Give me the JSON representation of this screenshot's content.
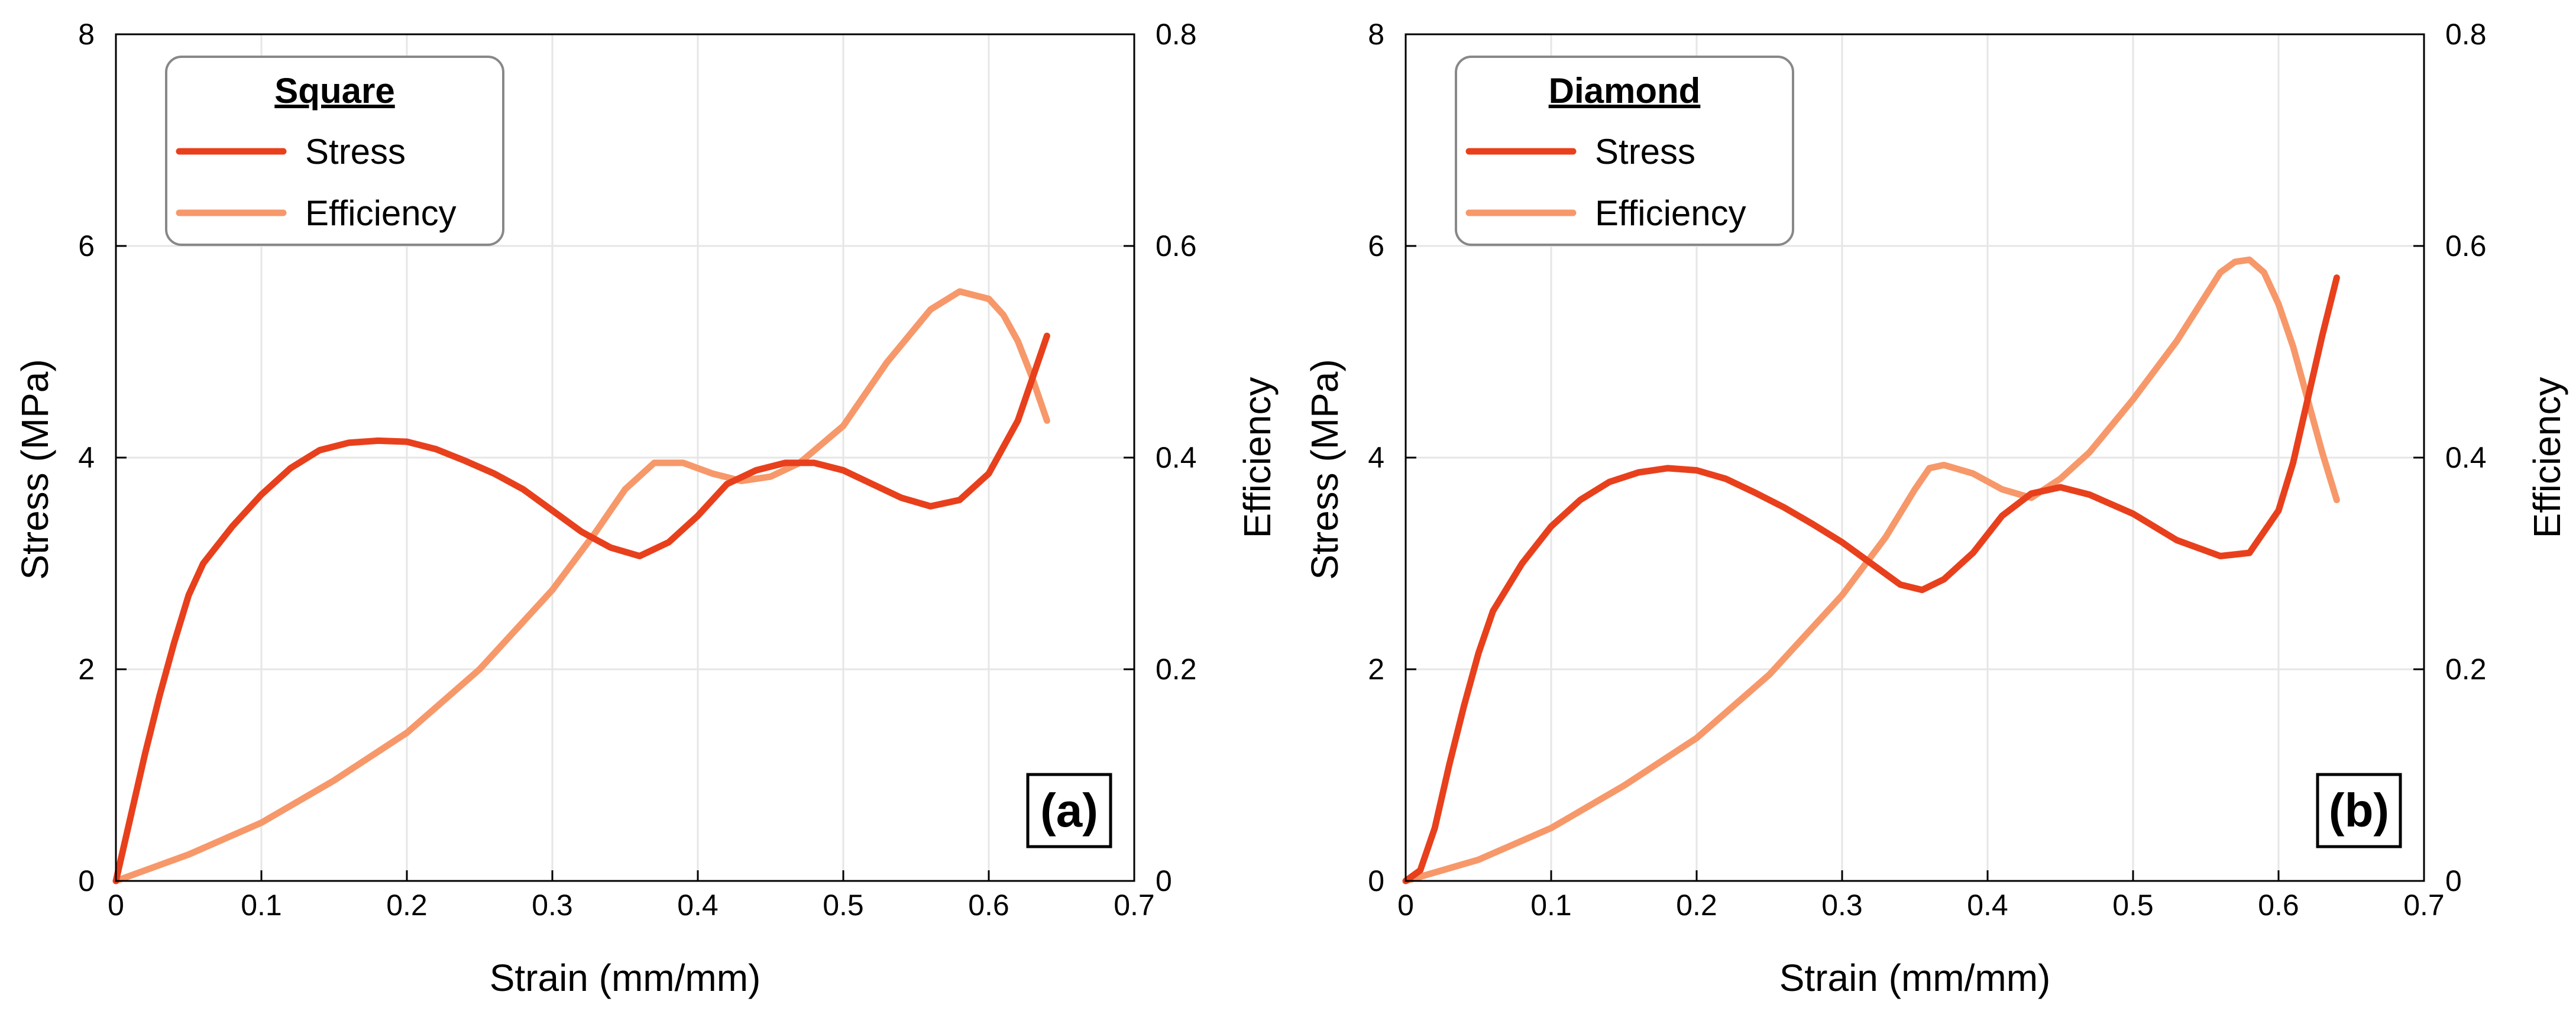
{
  "colors": {
    "stress": "#e8401c",
    "efficiency": "#f7986a"
  },
  "chart_data": [
    {
      "type": "line",
      "panel_label": "(a)",
      "legend_title": "Square",
      "legend_position": "top-left",
      "xlabel": "Strain (mm/mm)",
      "ylabel": "Stress (MPa)",
      "y2label": "Efficiency",
      "xlim": [
        0,
        0.7
      ],
      "ylim": [
        0,
        8
      ],
      "y2lim": [
        0,
        0.8
      ],
      "xticks": [
        "0",
        "0.1",
        "0.2",
        "0.3",
        "0.4",
        "0.5",
        "0.6",
        "0.7"
      ],
      "yticks": [
        "0",
        "2",
        "4",
        "6",
        "8"
      ],
      "y2ticks": [
        "0",
        "0.2",
        "0.4",
        "0.6",
        "0.8"
      ],
      "grid": true,
      "series": [
        {
          "name": "Stress",
          "axis": "left",
          "x": [
            0,
            0.01,
            0.02,
            0.03,
            0.04,
            0.05,
            0.06,
            0.08,
            0.1,
            0.12,
            0.14,
            0.16,
            0.18,
            0.2,
            0.22,
            0.24,
            0.26,
            0.28,
            0.3,
            0.32,
            0.34,
            0.36,
            0.38,
            0.4,
            0.42,
            0.44,
            0.46,
            0.48,
            0.5,
            0.52,
            0.54,
            0.56,
            0.58,
            0.6,
            0.62,
            0.63,
            0.64
          ],
          "y": [
            0,
            0.6,
            1.2,
            1.75,
            2.25,
            2.7,
            3.0,
            3.35,
            3.65,
            3.9,
            4.07,
            4.14,
            4.16,
            4.15,
            4.08,
            3.97,
            3.85,
            3.7,
            3.5,
            3.3,
            3.15,
            3.07,
            3.2,
            3.45,
            3.75,
            3.88,
            3.95,
            3.95,
            3.88,
            3.75,
            3.62,
            3.54,
            3.6,
            3.85,
            4.35,
            4.75,
            5.15
          ]
        },
        {
          "name": "Efficiency",
          "axis": "right",
          "x": [
            0,
            0.05,
            0.1,
            0.15,
            0.2,
            0.25,
            0.3,
            0.33,
            0.35,
            0.37,
            0.39,
            0.41,
            0.43,
            0.45,
            0.47,
            0.5,
            0.53,
            0.56,
            0.58,
            0.6,
            0.61,
            0.62,
            0.63,
            0.64
          ],
          "y": [
            0,
            0.025,
            0.055,
            0.095,
            0.14,
            0.2,
            0.275,
            0.33,
            0.37,
            0.395,
            0.395,
            0.385,
            0.378,
            0.382,
            0.395,
            0.43,
            0.49,
            0.54,
            0.557,
            0.55,
            0.535,
            0.51,
            0.475,
            0.435
          ]
        }
      ]
    },
    {
      "type": "line",
      "panel_label": "(b)",
      "legend_title": "Diamond",
      "legend_position": "top-left",
      "xlabel": "Strain (mm/mm)",
      "ylabel": "Stress (MPa)",
      "y2label": "Efficiency",
      "xlim": [
        0,
        0.7
      ],
      "ylim": [
        0,
        8
      ],
      "y2lim": [
        0,
        0.8
      ],
      "xticks": [
        "0",
        "0.1",
        "0.2",
        "0.3",
        "0.4",
        "0.5",
        "0.6",
        "0.7"
      ],
      "yticks": [
        "0",
        "2",
        "4",
        "6",
        "8"
      ],
      "y2ticks": [
        "0",
        "0.2",
        "0.4",
        "0.6",
        "0.8"
      ],
      "grid": true,
      "series": [
        {
          "name": "Stress",
          "axis": "left",
          "x": [
            0,
            0.01,
            0.02,
            0.03,
            0.04,
            0.05,
            0.06,
            0.08,
            0.1,
            0.12,
            0.14,
            0.16,
            0.18,
            0.2,
            0.22,
            0.24,
            0.26,
            0.28,
            0.3,
            0.32,
            0.34,
            0.355,
            0.37,
            0.39,
            0.41,
            0.43,
            0.45,
            0.47,
            0.5,
            0.53,
            0.56,
            0.58,
            0.6,
            0.61,
            0.62,
            0.63,
            0.64
          ],
          "y": [
            0,
            0.1,
            0.5,
            1.1,
            1.65,
            2.15,
            2.55,
            3.0,
            3.35,
            3.6,
            3.77,
            3.86,
            3.9,
            3.88,
            3.8,
            3.67,
            3.53,
            3.37,
            3.2,
            3.0,
            2.8,
            2.75,
            2.85,
            3.1,
            3.45,
            3.66,
            3.72,
            3.65,
            3.47,
            3.22,
            3.07,
            3.1,
            3.5,
            3.95,
            4.55,
            5.15,
            5.7
          ]
        },
        {
          "name": "Efficiency",
          "axis": "right",
          "x": [
            0,
            0.05,
            0.1,
            0.15,
            0.2,
            0.25,
            0.3,
            0.33,
            0.35,
            0.36,
            0.37,
            0.39,
            0.41,
            0.43,
            0.45,
            0.47,
            0.5,
            0.53,
            0.56,
            0.57,
            0.58,
            0.59,
            0.6,
            0.61,
            0.62,
            0.63,
            0.64
          ],
          "y": [
            0,
            0.02,
            0.05,
            0.09,
            0.135,
            0.195,
            0.27,
            0.325,
            0.37,
            0.39,
            0.393,
            0.385,
            0.37,
            0.362,
            0.38,
            0.405,
            0.455,
            0.51,
            0.575,
            0.585,
            0.587,
            0.575,
            0.545,
            0.505,
            0.455,
            0.405,
            0.36
          ]
        }
      ]
    }
  ]
}
